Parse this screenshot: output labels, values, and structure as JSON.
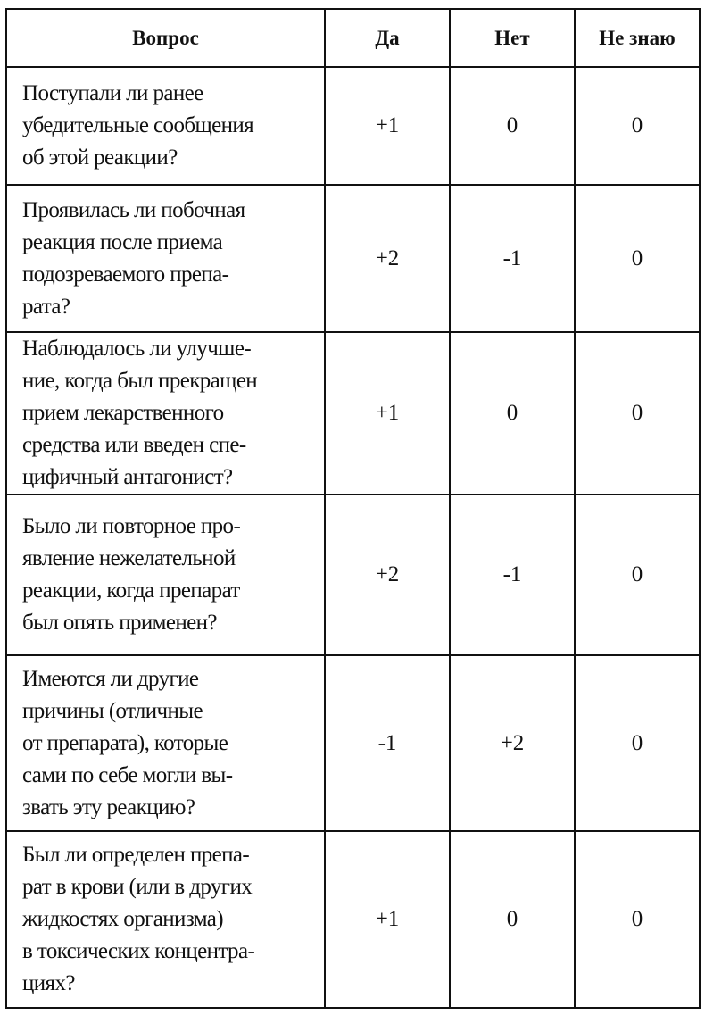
{
  "headers": [
    "Вопрос",
    "Да",
    "Нет",
    "Не знаю"
  ],
  "rows": [
    {
      "question": "Поступали ли ранее\nубедительные сообщения\nоб этой реакции?",
      "yes": "+1",
      "no": "0",
      "unknown": "0"
    },
    {
      "question": "Проявилась ли побочная\nреакция после приема\nподозреваемого препа-\nрата?",
      "yes": "+2",
      "no": "-1",
      "unknown": "0"
    },
    {
      "question": "Наблюдалось ли улучше-\nние, когда был прекращен\nприем лекарственного\nсредства или введен спе-\nцифичный антагонист?",
      "yes": "+1",
      "no": "0",
      "unknown": "0"
    },
    {
      "question": "Было ли повторное про-\nявление нежелательной\nреакции, когда препарат\nбыл опять применен?",
      "yes": "+2",
      "no": "-1",
      "unknown": "0"
    },
    {
      "question": "Имеются ли другие\nпричины (отличные\nот препарата), которые\nсами по себе могли вы-\nзвать эту реакцию?",
      "yes": "-1",
      "no": "+2",
      "unknown": "0"
    },
    {
      "question": "Был ли определен препа-\nрат в крови (или в других\nжидкостях организма)\nв токсических концентра-\nциях?",
      "yes": "+1",
      "no": "0",
      "unknown": "0"
    }
  ]
}
